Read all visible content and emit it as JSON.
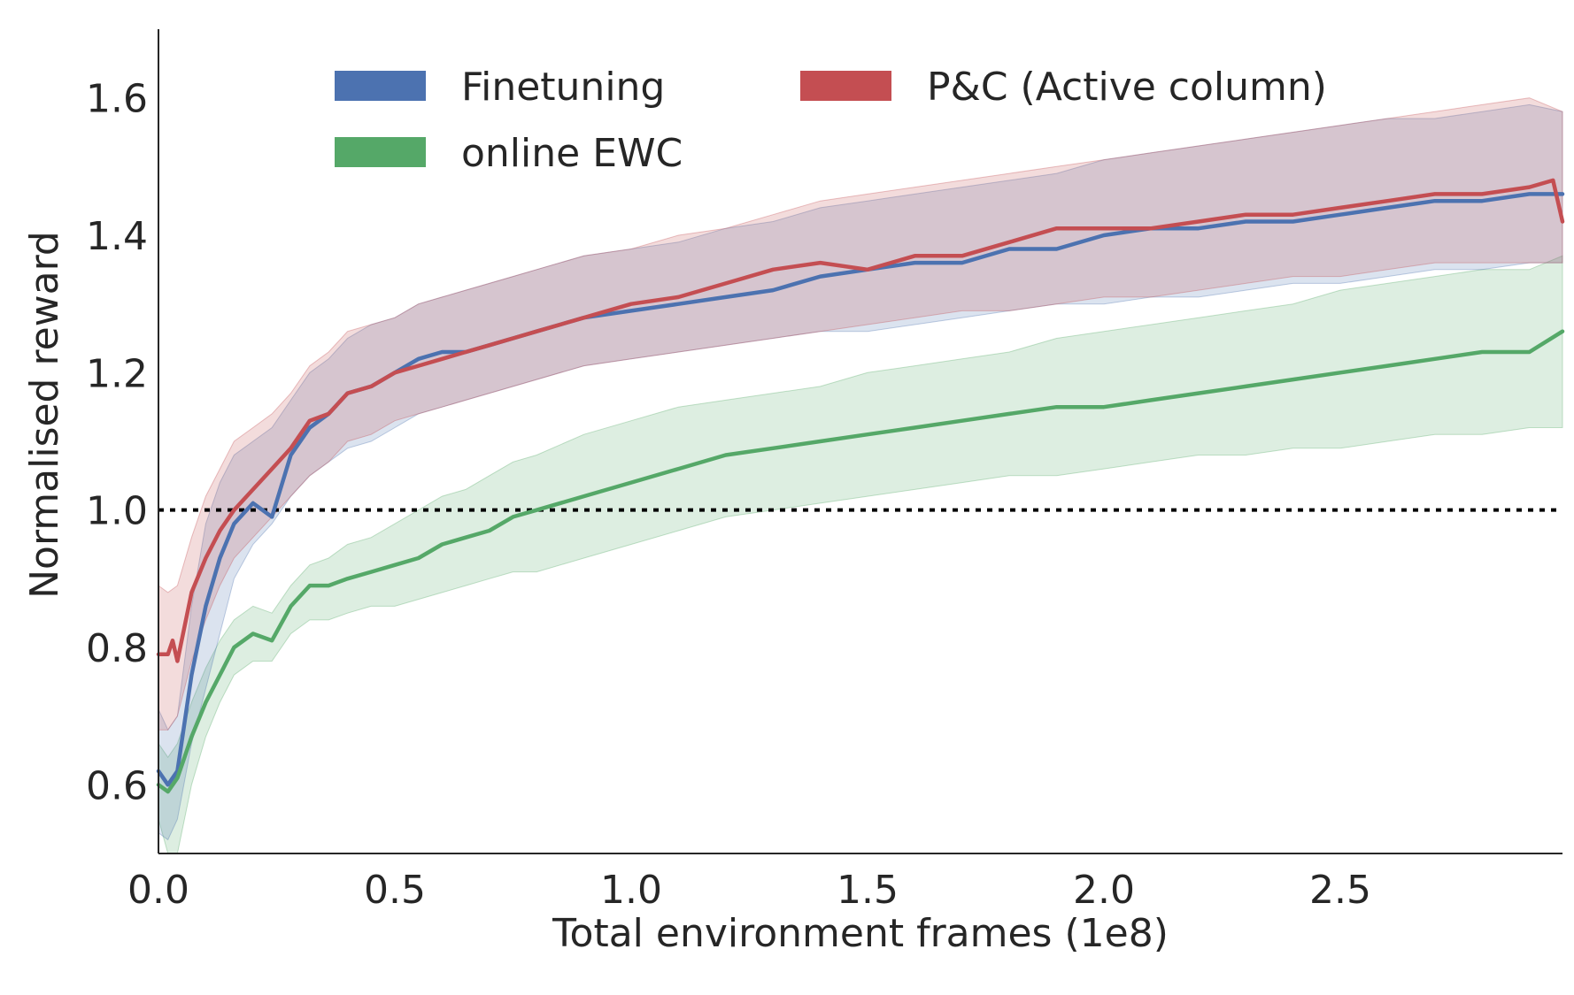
{
  "chart_data": {
    "type": "line",
    "title": "",
    "xlabel": "Total environment frames (1e8)",
    "ylabel": "Normalised reward",
    "xlim": [
      0.0,
      2.97
    ],
    "ylim": [
      0.5,
      1.7
    ],
    "xticks": [
      0.0,
      0.5,
      1.0,
      1.5,
      2.0,
      2.5
    ],
    "xtick_labels": [
      "0.0",
      "0.5",
      "1.0",
      "1.5",
      "2.0",
      "2.5"
    ],
    "yticks": [
      0.6,
      0.8,
      1.0,
      1.2,
      1.4,
      1.6
    ],
    "ytick_labels": [
      "0.6",
      "0.8",
      "1.0",
      "1.2",
      "1.4",
      "1.6"
    ],
    "grid": false,
    "legend_position": "top",
    "reference_line": {
      "y": 1.0,
      "style": "dotted",
      "color": "#000000"
    },
    "series": [
      {
        "name": "Finetuning",
        "color": "#4c72b0",
        "x": [
          0.0,
          0.02,
          0.04,
          0.07,
          0.1,
          0.13,
          0.16,
          0.2,
          0.24,
          0.28,
          0.32,
          0.36,
          0.4,
          0.45,
          0.5,
          0.55,
          0.6,
          0.65,
          0.7,
          0.75,
          0.8,
          0.9,
          1.0,
          1.1,
          1.2,
          1.3,
          1.4,
          1.5,
          1.6,
          1.7,
          1.8,
          1.9,
          2.0,
          2.1,
          2.2,
          2.3,
          2.4,
          2.5,
          2.6,
          2.7,
          2.8,
          2.9,
          2.97
        ],
        "y": [
          0.62,
          0.6,
          0.62,
          0.76,
          0.86,
          0.93,
          0.98,
          1.01,
          0.99,
          1.08,
          1.12,
          1.14,
          1.17,
          1.18,
          1.2,
          1.22,
          1.23,
          1.23,
          1.24,
          1.25,
          1.26,
          1.28,
          1.29,
          1.3,
          1.31,
          1.32,
          1.34,
          1.35,
          1.36,
          1.36,
          1.38,
          1.38,
          1.4,
          1.41,
          1.41,
          1.42,
          1.42,
          1.43,
          1.44,
          1.45,
          1.45,
          1.46,
          1.46
        ],
        "lower": [
          0.53,
          0.52,
          0.55,
          0.66,
          0.74,
          0.82,
          0.9,
          0.95,
          0.98,
          1.02,
          1.05,
          1.07,
          1.09,
          1.1,
          1.12,
          1.14,
          1.15,
          1.16,
          1.17,
          1.18,
          1.19,
          1.21,
          1.22,
          1.23,
          1.24,
          1.25,
          1.26,
          1.26,
          1.27,
          1.28,
          1.29,
          1.3,
          1.3,
          1.31,
          1.31,
          1.32,
          1.33,
          1.33,
          1.34,
          1.35,
          1.35,
          1.36,
          1.36
        ],
        "upper": [
          0.71,
          0.68,
          0.7,
          0.86,
          0.98,
          1.04,
          1.08,
          1.1,
          1.12,
          1.16,
          1.2,
          1.22,
          1.25,
          1.27,
          1.28,
          1.3,
          1.31,
          1.32,
          1.33,
          1.34,
          1.35,
          1.37,
          1.38,
          1.39,
          1.41,
          1.42,
          1.44,
          1.45,
          1.46,
          1.47,
          1.48,
          1.49,
          1.51,
          1.52,
          1.53,
          1.54,
          1.55,
          1.56,
          1.57,
          1.57,
          1.58,
          1.59,
          1.58
        ]
      },
      {
        "name": "online EWC",
        "color": "#55a868",
        "x": [
          0.0,
          0.02,
          0.04,
          0.07,
          0.1,
          0.13,
          0.16,
          0.2,
          0.24,
          0.28,
          0.32,
          0.36,
          0.4,
          0.45,
          0.5,
          0.55,
          0.6,
          0.65,
          0.7,
          0.75,
          0.8,
          0.9,
          1.0,
          1.1,
          1.2,
          1.3,
          1.4,
          1.5,
          1.6,
          1.7,
          1.8,
          1.9,
          2.0,
          2.1,
          2.2,
          2.3,
          2.4,
          2.5,
          2.6,
          2.7,
          2.8,
          2.9,
          2.97
        ],
        "y": [
          0.6,
          0.59,
          0.61,
          0.67,
          0.72,
          0.76,
          0.8,
          0.82,
          0.81,
          0.86,
          0.89,
          0.89,
          0.9,
          0.91,
          0.92,
          0.93,
          0.95,
          0.96,
          0.97,
          0.99,
          1.0,
          1.02,
          1.04,
          1.06,
          1.08,
          1.09,
          1.1,
          1.11,
          1.12,
          1.13,
          1.14,
          1.15,
          1.15,
          1.16,
          1.17,
          1.18,
          1.19,
          1.2,
          1.21,
          1.22,
          1.23,
          1.23,
          1.26
        ],
        "lower": [
          0.55,
          0.5,
          0.5,
          0.6,
          0.67,
          0.72,
          0.76,
          0.78,
          0.78,
          0.82,
          0.84,
          0.84,
          0.85,
          0.86,
          0.86,
          0.87,
          0.88,
          0.89,
          0.9,
          0.91,
          0.91,
          0.93,
          0.95,
          0.97,
          0.99,
          1.0,
          1.01,
          1.02,
          1.03,
          1.04,
          1.05,
          1.05,
          1.06,
          1.07,
          1.08,
          1.08,
          1.09,
          1.09,
          1.1,
          1.11,
          1.11,
          1.12,
          1.12
        ],
        "upper": [
          0.66,
          0.64,
          0.66,
          0.72,
          0.77,
          0.81,
          0.84,
          0.86,
          0.85,
          0.89,
          0.92,
          0.93,
          0.95,
          0.96,
          0.98,
          1.0,
          1.02,
          1.03,
          1.05,
          1.07,
          1.08,
          1.11,
          1.13,
          1.15,
          1.16,
          1.17,
          1.18,
          1.2,
          1.21,
          1.22,
          1.23,
          1.25,
          1.26,
          1.27,
          1.28,
          1.29,
          1.3,
          1.32,
          1.33,
          1.34,
          1.35,
          1.35,
          1.37
        ]
      },
      {
        "name": "P&C (Active column)",
        "color": "#c44e52",
        "x": [
          0.0,
          0.02,
          0.03,
          0.04,
          0.07,
          0.1,
          0.13,
          0.16,
          0.2,
          0.24,
          0.28,
          0.32,
          0.36,
          0.4,
          0.45,
          0.5,
          0.55,
          0.6,
          0.65,
          0.7,
          0.75,
          0.8,
          0.9,
          1.0,
          1.1,
          1.2,
          1.3,
          1.4,
          1.5,
          1.6,
          1.7,
          1.8,
          1.9,
          2.0,
          2.1,
          2.2,
          2.3,
          2.4,
          2.5,
          2.6,
          2.7,
          2.8,
          2.9,
          2.95,
          2.97
        ],
        "y": [
          0.79,
          0.79,
          0.81,
          0.78,
          0.88,
          0.93,
          0.97,
          1.0,
          1.03,
          1.06,
          1.09,
          1.13,
          1.14,
          1.17,
          1.18,
          1.2,
          1.21,
          1.22,
          1.23,
          1.24,
          1.25,
          1.26,
          1.28,
          1.3,
          1.31,
          1.33,
          1.35,
          1.36,
          1.35,
          1.37,
          1.37,
          1.39,
          1.41,
          1.41,
          1.41,
          1.42,
          1.43,
          1.43,
          1.44,
          1.45,
          1.46,
          1.46,
          1.47,
          1.48,
          1.42
        ]
      }
    ],
    "pc_band": {
      "x": [
        0.0,
        0.02,
        0.04,
        0.07,
        0.1,
        0.13,
        0.16,
        0.2,
        0.24,
        0.28,
        0.32,
        0.36,
        0.4,
        0.45,
        0.5,
        0.55,
        0.6,
        0.65,
        0.7,
        0.75,
        0.8,
        0.9,
        1.0,
        1.1,
        1.2,
        1.3,
        1.4,
        1.5,
        1.6,
        1.7,
        1.8,
        1.9,
        2.0,
        2.1,
        2.2,
        2.3,
        2.4,
        2.5,
        2.6,
        2.7,
        2.8,
        2.9,
        2.97
      ],
      "lower": [
        0.68,
        0.68,
        0.7,
        0.78,
        0.84,
        0.89,
        0.93,
        0.96,
        0.99,
        1.02,
        1.05,
        1.07,
        1.1,
        1.11,
        1.13,
        1.14,
        1.15,
        1.16,
        1.17,
        1.18,
        1.19,
        1.21,
        1.22,
        1.23,
        1.24,
        1.25,
        1.26,
        1.27,
        1.28,
        1.29,
        1.29,
        1.3,
        1.31,
        1.31,
        1.32,
        1.33,
        1.34,
        1.34,
        1.35,
        1.36,
        1.36,
        1.36,
        1.36
      ],
      "upper": [
        0.89,
        0.88,
        0.89,
        0.96,
        1.02,
        1.06,
        1.1,
        1.12,
        1.14,
        1.17,
        1.21,
        1.23,
        1.26,
        1.27,
        1.28,
        1.3,
        1.31,
        1.32,
        1.33,
        1.34,
        1.35,
        1.37,
        1.38,
        1.4,
        1.41,
        1.43,
        1.45,
        1.46,
        1.47,
        1.48,
        1.49,
        1.5,
        1.51,
        1.52,
        1.53,
        1.54,
        1.55,
        1.56,
        1.57,
        1.58,
        1.59,
        1.6,
        1.58
      ]
    }
  }
}
